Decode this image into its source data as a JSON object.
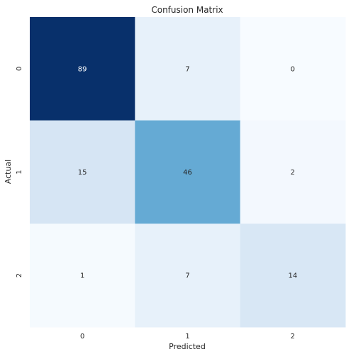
{
  "chart_data": {
    "type": "heatmap",
    "title": "Confusion Matrix",
    "xlabel": "Predicted",
    "ylabel": "Actual",
    "x_categories": [
      "0",
      "1",
      "2"
    ],
    "y_categories": [
      "0",
      "1",
      "2"
    ],
    "values": [
      [
        89,
        7,
        0
      ],
      [
        15,
        46,
        2
      ],
      [
        1,
        7,
        14
      ]
    ],
    "colormap": "Blues",
    "vmin": 0,
    "vmax": 89,
    "colorbar": false,
    "grid": false
  }
}
